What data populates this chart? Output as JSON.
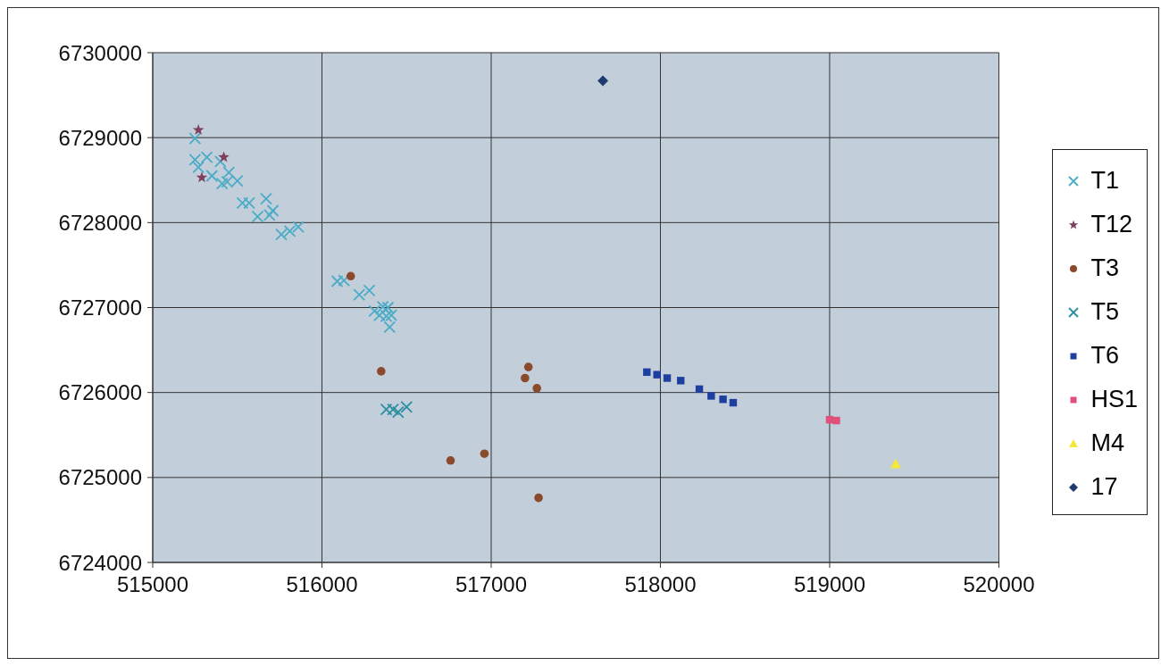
{
  "chart_data": {
    "type": "scatter",
    "xlim": [
      515000,
      520000
    ],
    "xticks": [
      515000,
      516000,
      517000,
      518000,
      519000,
      520000
    ],
    "ylim": [
      6724000,
      6730000
    ],
    "yticks": [
      6724000,
      6725000,
      6726000,
      6727000,
      6728000,
      6729000,
      6730000
    ],
    "grid": true,
    "legend": "right",
    "series": [
      {
        "name": "T1",
        "color": "#4bacc6",
        "marker": "cross",
        "x": [
          515250,
          515250,
          515320,
          515270,
          515350,
          515400,
          515450,
          515410,
          515440,
          515500,
          515530,
          515570,
          515670,
          515620,
          515690,
          515710,
          515760,
          515810,
          515860,
          516090,
          516130,
          516220,
          516280,
          516310,
          516360,
          516340,
          516390,
          516380,
          516410,
          516400
        ],
        "values": [
          6728990,
          6728740,
          6728770,
          6728650,
          6728550,
          6728720,
          6728590,
          6728460,
          6728480,
          6728490,
          6728230,
          6728230,
          6728280,
          6728070,
          6728090,
          6728140,
          6727860,
          6727900,
          6727950,
          6727310,
          6727320,
          6727150,
          6727200,
          6726960,
          6727010,
          6726910,
          6727000,
          6726900,
          6726910,
          6726770
        ]
      },
      {
        "name": "T12",
        "color": "#7f3f5f",
        "marker": "star",
        "x": [
          515270,
          515420,
          515290
        ],
        "values": [
          6729090,
          6728770,
          6728530
        ]
      },
      {
        "name": "T3",
        "color": "#8b4a2b",
        "marker": "circle",
        "x": [
          516170,
          516350,
          517220,
          517200,
          517270,
          516960,
          516760,
          517280
        ],
        "values": [
          6727370,
          6726250,
          6726300,
          6726170,
          6726050,
          6725280,
          6725200,
          6724760
        ]
      },
      {
        "name": "T5",
        "color": "#2a8fa0",
        "marker": "cross",
        "x": [
          516380,
          516420,
          516450,
          516500
        ],
        "values": [
          6725800,
          6725800,
          6725770,
          6725830
        ]
      },
      {
        "name": "T6",
        "color": "#1f3f9f",
        "marker": "square",
        "x": [
          517920,
          517980,
          518040,
          518120,
          518230,
          518300,
          518370,
          518430
        ],
        "values": [
          6726240,
          6726210,
          6726170,
          6726140,
          6726040,
          6725960,
          6725920,
          6725880
        ]
      },
      {
        "name": "HS1",
        "color": "#e0507a",
        "marker": "square",
        "x": [
          519000,
          519040
        ],
        "values": [
          6725680,
          6725670
        ]
      },
      {
        "name": "M4",
        "color": "#f5e83a",
        "marker": "triangle",
        "x": [
          519390
        ],
        "values": [
          6725160
        ]
      },
      {
        "name": "17",
        "color": "#1f3a6e",
        "marker": "diamond",
        "x": [
          517660
        ],
        "values": [
          6729670
        ]
      }
    ]
  }
}
